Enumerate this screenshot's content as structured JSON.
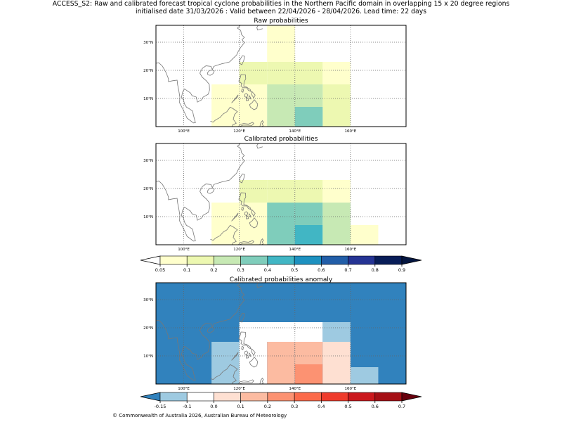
{
  "figure": {
    "title_line1": "ACCESS_S2: Raw and calibrated forecast tropical cyclone probabilities in the Northern Pacific domain in overlapping 15 x 20 degree regions",
    "title_line2": "initialised date 31/03/2026 :  Valid between 22/04/2026 - 28/04/2026. Lead time: 22 days",
    "copyright": "© Commonwealth of Australia 2026, Australian Bureau of Meteorology"
  },
  "colors": {
    "land_outline": "#777777",
    "grid": "#666666"
  },
  "chart_data": [
    {
      "type": "heatmap",
      "title": "Raw probabilities",
      "xlim": [
        90,
        180
      ],
      "ylim": [
        0,
        36
      ],
      "xticks": [
        100,
        120,
        140,
        160
      ],
      "xtick_labels": [
        "100°E",
        "120°E",
        "140°E",
        "160°E"
      ],
      "yticks": [
        10,
        20,
        30
      ],
      "ytick_labels": [
        "10°N",
        "20°N",
        "30°N"
      ],
      "background": "#ffffff",
      "cells": [
        {
          "lon": [
            130,
            140
          ],
          "lat": [
            23,
            36
          ],
          "color": "#ffffcc",
          "value": 0.05
        },
        {
          "lon": [
            110,
            120
          ],
          "lat": [
            0,
            15
          ],
          "color": "#ffffcc",
          "value": 0.05
        },
        {
          "lon": [
            120,
            130
          ],
          "lat": [
            0,
            15
          ],
          "color": "#ffffcc",
          "value": 0.05
        },
        {
          "lon": [
            120,
            130
          ],
          "lat": [
            15,
            23
          ],
          "color": "#edf8b1",
          "value": 0.1
        },
        {
          "lon": [
            130,
            140
          ],
          "lat": [
            15,
            23
          ],
          "color": "#edf8b1",
          "value": 0.1
        },
        {
          "lon": [
            140,
            150
          ],
          "lat": [
            15,
            23
          ],
          "color": "#edf8b1",
          "value": 0.1
        },
        {
          "lon": [
            150,
            160
          ],
          "lat": [
            15,
            23
          ],
          "color": "#ffffcc",
          "value": 0.05
        },
        {
          "lon": [
            150,
            160
          ],
          "lat": [
            0,
            15
          ],
          "color": "#edf8b1",
          "value": 0.1
        },
        {
          "lon": [
            130,
            140
          ],
          "lat": [
            0,
            15
          ],
          "color": "#c7e9b4",
          "value": 0.2
        },
        {
          "lon": [
            140,
            150
          ],
          "lat": [
            7,
            15
          ],
          "color": "#c7e9b4",
          "value": 0.2
        },
        {
          "lon": [
            140,
            150
          ],
          "lat": [
            0,
            7
          ],
          "color": "#7fcdbb",
          "value": 0.3
        }
      ]
    },
    {
      "type": "heatmap",
      "title": "Calibrated probabilities",
      "xlim": [
        90,
        180
      ],
      "ylim": [
        0,
        36
      ],
      "xticks": [
        100,
        120,
        140,
        160
      ],
      "xtick_labels": [
        "100°E",
        "120°E",
        "140°E",
        "160°E"
      ],
      "yticks": [
        10,
        20,
        30
      ],
      "ytick_labels": [
        "10°N",
        "20°N",
        "30°N"
      ],
      "background": "#ffffff",
      "cells": [
        {
          "lon": [
            110,
            120
          ],
          "lat": [
            0,
            15
          ],
          "color": "#ffffcc",
          "value": 0.05
        },
        {
          "lon": [
            120,
            130
          ],
          "lat": [
            0,
            15
          ],
          "color": "#ffffcc",
          "value": 0.05
        },
        {
          "lon": [
            120,
            130
          ],
          "lat": [
            15,
            23
          ],
          "color": "#edf8b1",
          "value": 0.1
        },
        {
          "lon": [
            130,
            140
          ],
          "lat": [
            15,
            23
          ],
          "color": "#edf8b1",
          "value": 0.1
        },
        {
          "lon": [
            140,
            150
          ],
          "lat": [
            15,
            23
          ],
          "color": "#edf8b1",
          "value": 0.1
        },
        {
          "lon": [
            150,
            160
          ],
          "lat": [
            15,
            23
          ],
          "color": "#ffffcc",
          "value": 0.05
        },
        {
          "lon": [
            130,
            140
          ],
          "lat": [
            0,
            15
          ],
          "color": "#7fcdbb",
          "value": 0.3
        },
        {
          "lon": [
            140,
            150
          ],
          "lat": [
            7,
            15
          ],
          "color": "#7fcdbb",
          "value": 0.3
        },
        {
          "lon": [
            140,
            150
          ],
          "lat": [
            0,
            7
          ],
          "color": "#41b6c4",
          "value": 0.4
        },
        {
          "lon": [
            150,
            160
          ],
          "lat": [
            0,
            15
          ],
          "color": "#c7e9b4",
          "value": 0.2
        },
        {
          "lon": [
            160,
            170
          ],
          "lat": [
            0,
            7
          ],
          "color": "#ffffcc",
          "value": 0.05
        }
      ]
    },
    {
      "type": "colorbar",
      "labels": [
        "0.05",
        "0.1",
        "0.2",
        "0.3",
        "0.4",
        "0.5",
        "0.6",
        "0.7",
        "0.8",
        "0.9"
      ],
      "under_color": "#ffffff",
      "colors": [
        "#ffffcc",
        "#edf8b1",
        "#c7e9b4",
        "#7fcdbb",
        "#41b6c4",
        "#1d91c0",
        "#225ea8",
        "#253494",
        "#081d58"
      ],
      "over_color": "#041640"
    },
    {
      "type": "heatmap",
      "title": "Calibrated probabilities anomaly",
      "xlim": [
        90,
        180
      ],
      "ylim": [
        0,
        36
      ],
      "xticks": [
        100,
        120,
        140,
        160
      ],
      "xtick_labels": [
        "100°E",
        "120°E",
        "140°E",
        "160°E"
      ],
      "yticks": [
        10,
        20,
        30
      ],
      "ytick_labels": [
        "10°N",
        "20°N",
        "30°N"
      ],
      "background": "#3182bd",
      "cells": [
        {
          "lon": [
            120,
            150
          ],
          "lat": [
            15,
            22
          ],
          "color": "#ffffff",
          "value": 0.0
        },
        {
          "lon": [
            150,
            160
          ],
          "lat": [
            15,
            22
          ],
          "color": "#9ecae1",
          "value": -0.1
        },
        {
          "lon": [
            110,
            120
          ],
          "lat": [
            0,
            15
          ],
          "color": "#9ecae1",
          "value": -0.1
        },
        {
          "lon": [
            120,
            130
          ],
          "lat": [
            0,
            15
          ],
          "color": "#ffffff",
          "value": 0.0
        },
        {
          "lon": [
            130,
            140
          ],
          "lat": [
            0,
            15
          ],
          "color": "#fcbba1",
          "value": 0.2
        },
        {
          "lon": [
            140,
            150
          ],
          "lat": [
            7,
            15
          ],
          "color": "#fcbba1",
          "value": 0.2
        },
        {
          "lon": [
            140,
            150
          ],
          "lat": [
            0,
            7
          ],
          "color": "#fc9272",
          "value": 0.3
        },
        {
          "lon": [
            150,
            160
          ],
          "lat": [
            0,
            15
          ],
          "color": "#fee0d2",
          "value": 0.1
        },
        {
          "lon": [
            160,
            170
          ],
          "lat": [
            0,
            6
          ],
          "color": "#9ecae1",
          "value": -0.1
        }
      ]
    },
    {
      "type": "colorbar",
      "labels": [
        "-0.15",
        "-0.1",
        "0.0",
        "0.1",
        "0.2",
        "0.3",
        "0.4",
        "0.5",
        "0.6",
        "0.7"
      ],
      "under_color": "#3182bd",
      "colors": [
        "#9ecae1",
        "#ffffff",
        "#fee0d2",
        "#fcbba1",
        "#fc9272",
        "#fb6a4a",
        "#ef3b2c",
        "#cb181d",
        "#a50f15"
      ],
      "over_color": "#67000d"
    }
  ]
}
